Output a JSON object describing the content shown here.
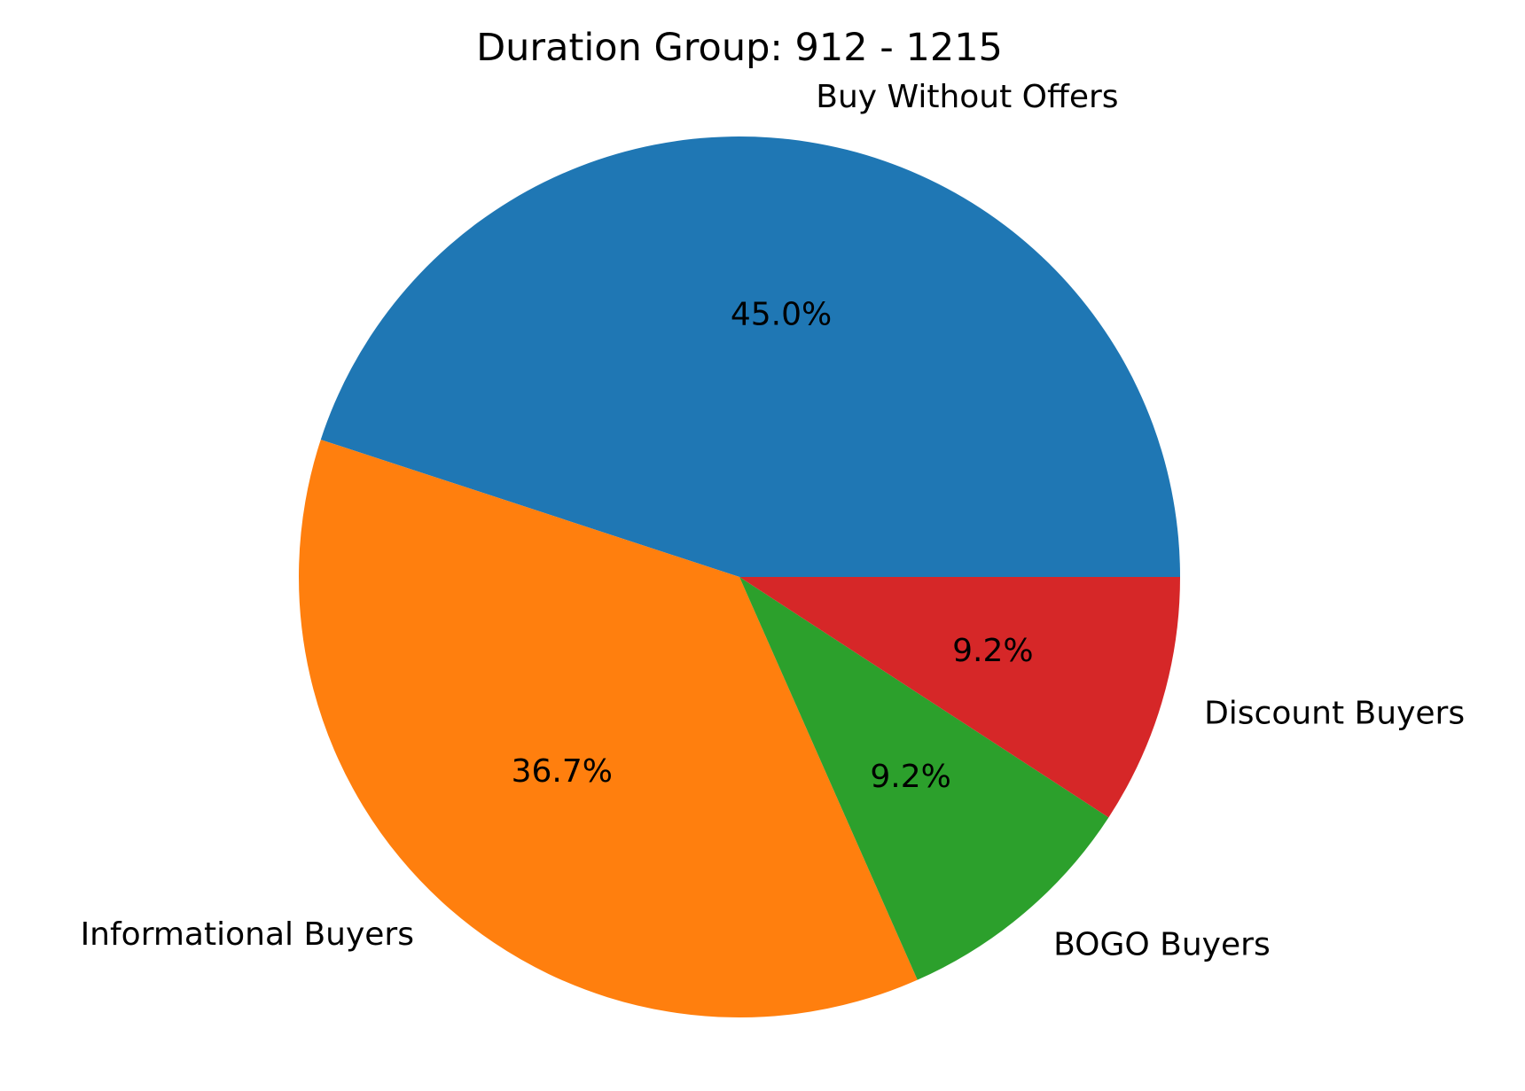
{
  "chart_data": {
    "type": "pie",
    "title": "Duration Group: 912 - 1215",
    "slices": [
      {
        "label": "Buy Without Offers",
        "value": 45.0,
        "pct_label": "45.0%",
        "color": "#1f77b4"
      },
      {
        "label": "Informational Buyers",
        "value": 36.7,
        "pct_label": "36.7%",
        "color": "#ff7f0e"
      },
      {
        "label": "BOGO Buyers",
        "value": 9.2,
        "pct_label": "9.2%",
        "color": "#2ca02c"
      },
      {
        "label": "Discount Buyers",
        "value": 9.2,
        "pct_label": "9.2%",
        "color": "#d62728"
      }
    ]
  }
}
